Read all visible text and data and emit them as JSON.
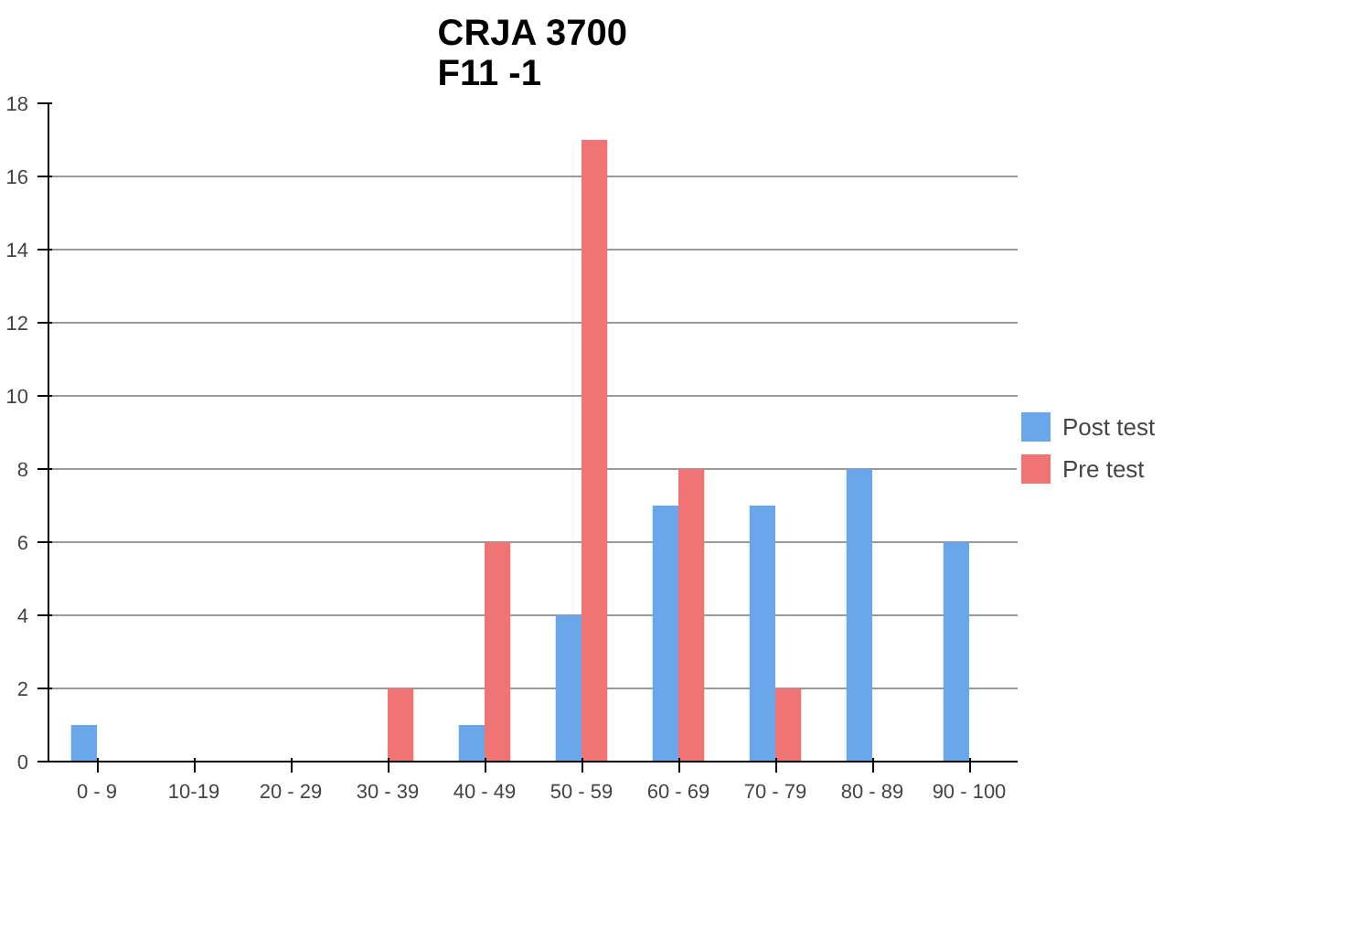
{
  "chart_data": {
    "type": "bar",
    "title": "CRJA 3700\nF11 -1",
    "categories": [
      "0 - 9",
      "10-19",
      "20 - 29",
      "30 - 39",
      "40 - 49",
      "50 - 59",
      "60 - 69",
      "70 - 79",
      "80 - 89",
      "90 - 100"
    ],
    "series": [
      {
        "name": "Post test",
        "color": "#6aa6ea",
        "values": [
          1,
          0,
          0,
          0,
          1,
          4,
          7,
          7,
          8,
          6
        ]
      },
      {
        "name": "Pre test",
        "color": "#f07474",
        "values": [
          0,
          0,
          0,
          2,
          6,
          17,
          8,
          2,
          0,
          0
        ]
      }
    ],
    "ylim": [
      0,
      18
    ],
    "yticks": [
      0,
      2,
      4,
      6,
      8,
      10,
      12,
      14,
      16,
      18
    ],
    "grid": "y",
    "legend": "right"
  }
}
